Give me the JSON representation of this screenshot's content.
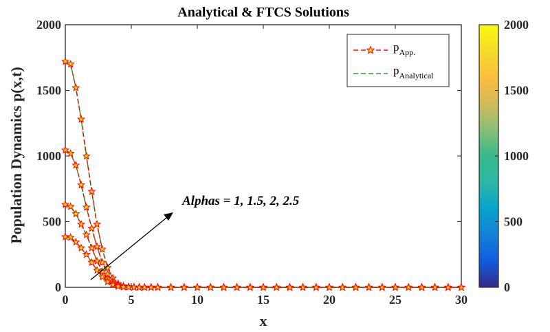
{
  "chart_data": {
    "type": "line",
    "title": "Analytical & FTCS Solutions",
    "xlabel": "x",
    "ylabel": "Population Dynamics p(x,t)",
    "xlim": [
      0,
      30
    ],
    "ylim": [
      0,
      2000
    ],
    "xticks": [
      "0",
      "5",
      "10",
      "15",
      "20",
      "25",
      "30"
    ],
    "yticks": [
      "0",
      "500",
      "1000",
      "1500",
      "2000"
    ],
    "grid": false,
    "legend": {
      "placement": "top-right",
      "entries": [
        {
          "main": "p",
          "sub": "App.",
          "style": "red dashed line with star markers"
        },
        {
          "main": "p",
          "sub": "Analytical",
          "style": "green dashed line"
        }
      ]
    },
    "annotation": "Alphas = 1, 1.5, 2, 2.5",
    "colorbar": {
      "ticks": [
        "0",
        "500",
        "1000",
        "1500",
        "2000"
      ],
      "range": [
        0,
        2000
      ],
      "colormap": "parula"
    },
    "series": [
      {
        "x": [
          0,
          0.4,
          0.8,
          1.2,
          1.6,
          2.0,
          2.4,
          2.8,
          3.2,
          3.6,
          4.0,
          4.4,
          4.8,
          5.2,
          5.6,
          6.0,
          6.5,
          7.0,
          8,
          9,
          10,
          11,
          12,
          13,
          14,
          15,
          16,
          17,
          18,
          19,
          20,
          21,
          22,
          23,
          24,
          25,
          26,
          27,
          28,
          29,
          30
        ],
        "y": [
          1720,
          1700,
          1520,
          1280,
          1000,
          730,
          480,
          290,
          150,
          70,
          28,
          10,
          4,
          2,
          1,
          0,
          0,
          0,
          0,
          0,
          0,
          0,
          0,
          0,
          0,
          0,
          0,
          0,
          0,
          0,
          0,
          0,
          0,
          0,
          0,
          0,
          0,
          0,
          0,
          0,
          0
        ]
      },
      {
        "x": [
          0,
          0.4,
          0.8,
          1.2,
          1.6,
          2.0,
          2.4,
          2.8,
          3.2,
          3.6,
          4.0,
          4.4,
          4.8,
          5.2,
          5.6,
          6.0,
          6.5,
          7.0,
          8,
          9,
          10,
          11,
          12,
          13,
          14,
          15,
          16,
          17,
          18,
          19,
          20,
          21,
          22,
          23,
          24,
          25,
          26,
          27,
          28,
          29,
          30
        ],
        "y": [
          1045,
          1020,
          930,
          780,
          610,
          450,
          310,
          190,
          100,
          45,
          18,
          7,
          3,
          1,
          0,
          0,
          0,
          0,
          0,
          0,
          0,
          0,
          0,
          0,
          0,
          0,
          0,
          0,
          0,
          0,
          0,
          0,
          0,
          0,
          0,
          0,
          0,
          0,
          0,
          0,
          0
        ]
      },
      {
        "x": [
          0,
          0.4,
          0.8,
          1.2,
          1.6,
          2.0,
          2.4,
          2.8,
          3.2,
          3.6,
          4.0,
          4.4,
          4.8,
          5.2,
          5.6,
          6.0,
          6.5,
          7.0,
          8,
          9,
          10,
          11,
          12,
          13,
          14,
          15,
          16,
          17,
          18,
          19,
          20,
          21,
          22,
          23,
          24,
          25,
          26,
          27,
          28,
          29,
          30
        ],
        "y": [
          630,
          615,
          560,
          480,
          400,
          300,
          200,
          120,
          65,
          30,
          12,
          5,
          2,
          1,
          0,
          0,
          0,
          0,
          0,
          0,
          0,
          0,
          0,
          0,
          0,
          0,
          0,
          0,
          0,
          0,
          0,
          0,
          0,
          0,
          0,
          0,
          0,
          0,
          0,
          0,
          0
        ]
      },
      {
        "x": [
          0,
          0.4,
          0.8,
          1.2,
          1.6,
          2.0,
          2.4,
          2.8,
          3.2,
          3.6,
          4.0,
          4.4,
          4.8,
          5.2,
          5.6,
          6.0,
          6.5,
          7.0,
          8,
          9,
          10,
          11,
          12,
          13,
          14,
          15,
          16,
          17,
          18,
          19,
          20,
          21,
          22,
          23,
          24,
          25,
          26,
          27,
          28,
          29,
          30
        ],
        "y": [
          385,
          380,
          345,
          300,
          250,
          190,
          130,
          80,
          42,
          20,
          8,
          3,
          1,
          0,
          0,
          0,
          0,
          0,
          0,
          0,
          0,
          0,
          0,
          0,
          0,
          0,
          0,
          0,
          0,
          0,
          0,
          0,
          0,
          0,
          0,
          0,
          0,
          0,
          0,
          0,
          0
        ]
      }
    ]
  },
  "colors": {
    "approx": "#ff0000",
    "star_fill": "#ffd600",
    "analytical": "#22aa22",
    "axis": "#262626"
  }
}
